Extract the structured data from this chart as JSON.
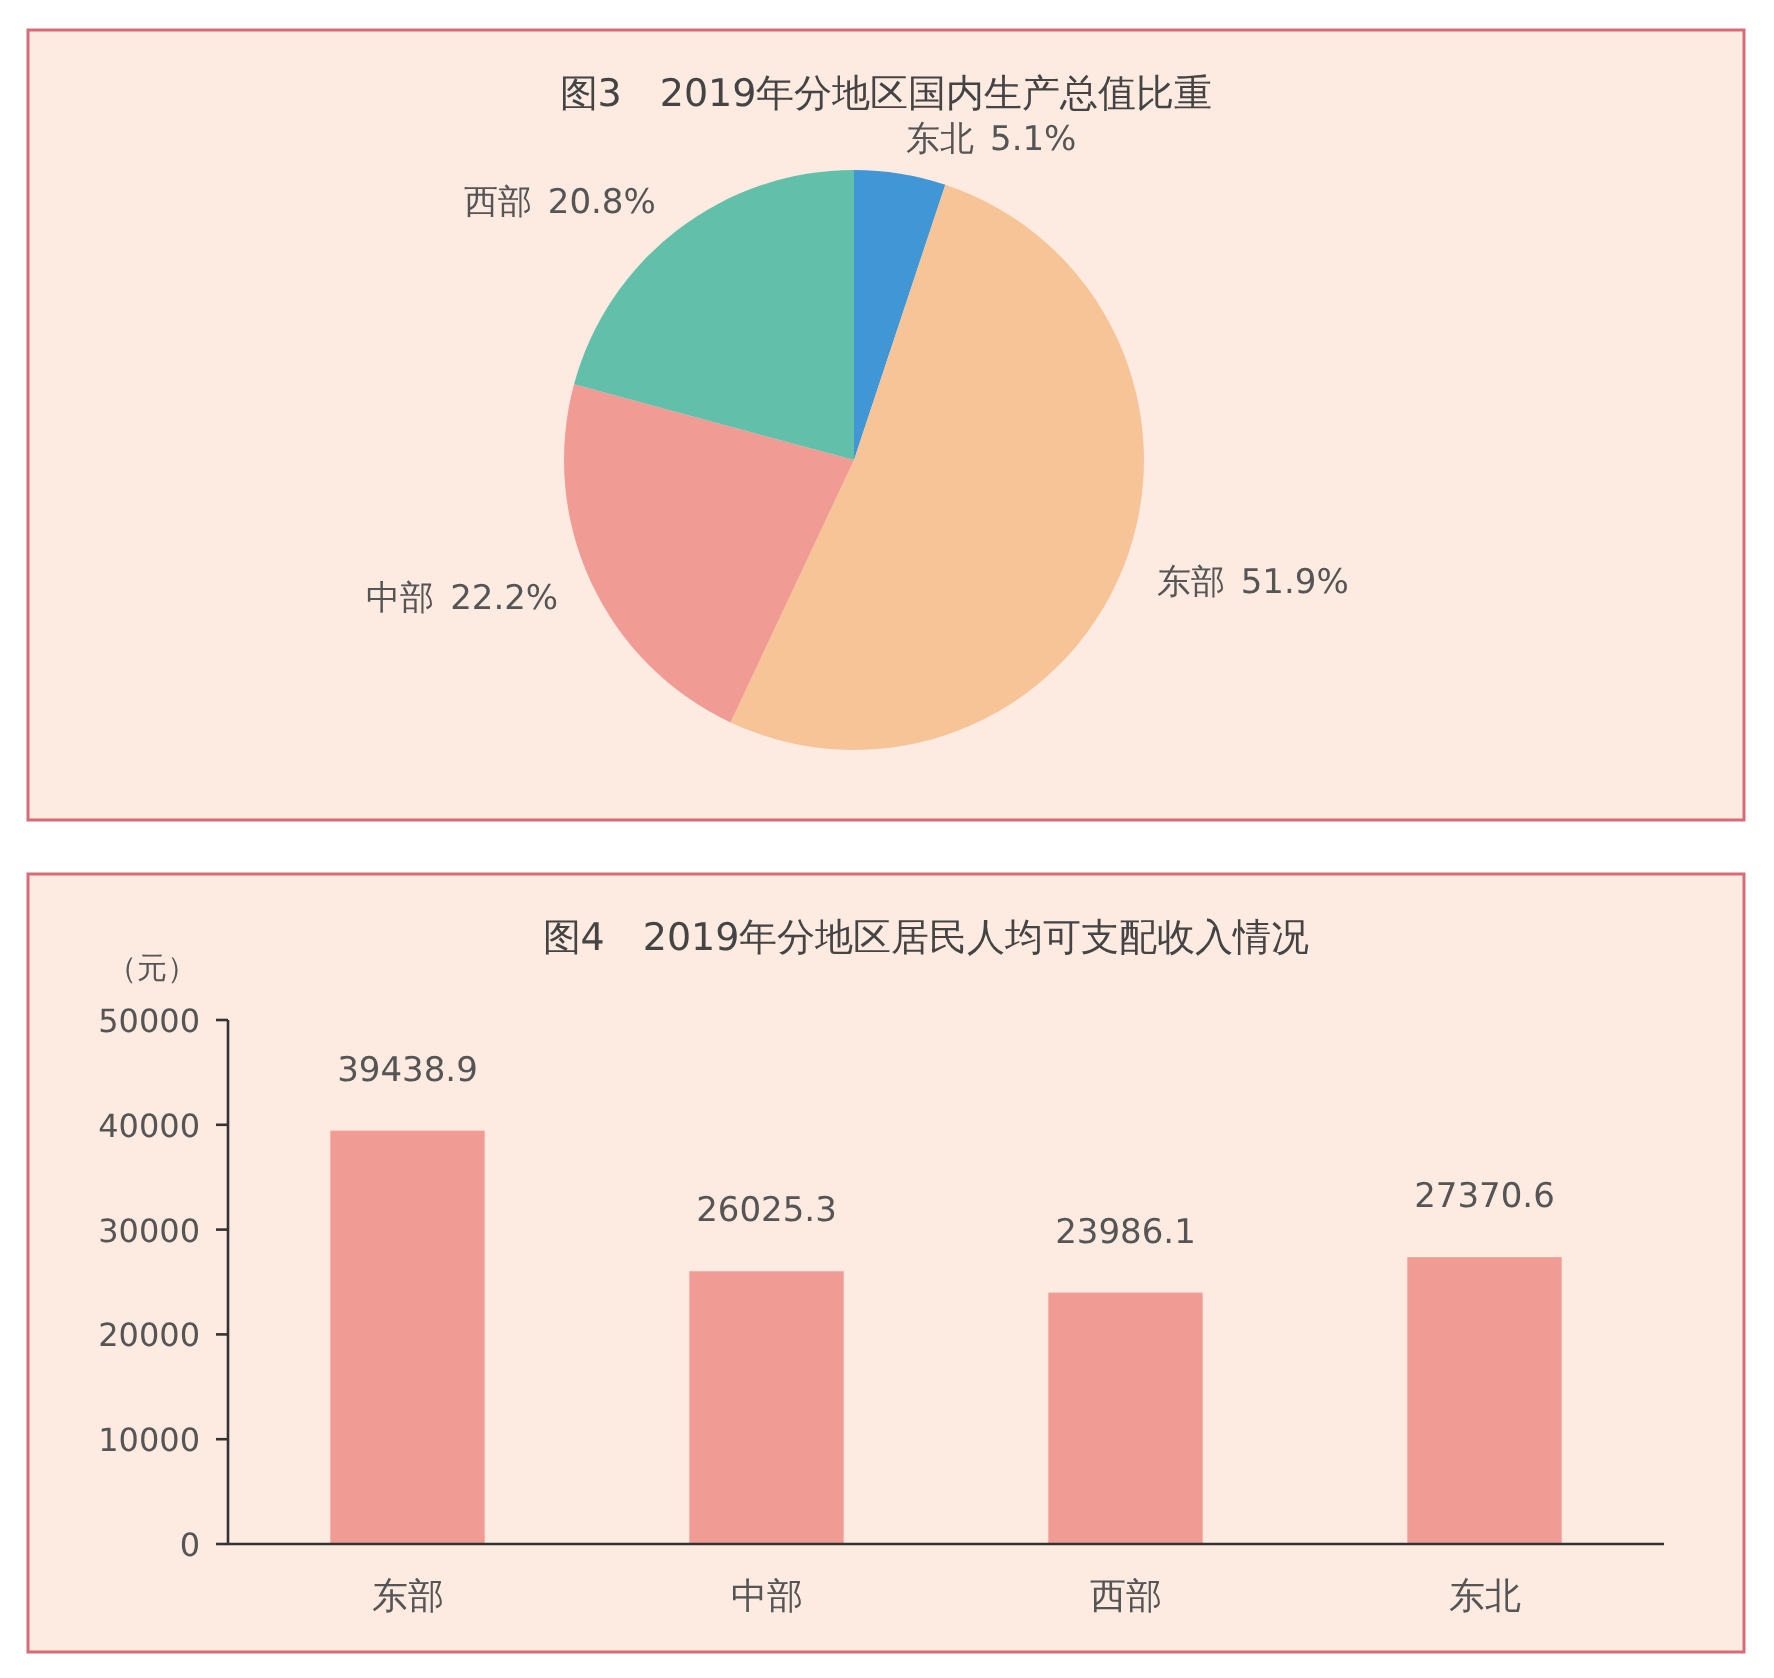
{
  "chart_data": [
    {
      "type": "pie",
      "title": "图3　2019年分地区国内生产总值比重",
      "categories": [
        "东北",
        "东部",
        "中部",
        "西部"
      ],
      "values": [
        5.1,
        51.9,
        22.2,
        20.8
      ],
      "value_labels": [
        "5.1%",
        "51.9%",
        "22.2%",
        "20.8%"
      ],
      "colors": [
        "#4196d6",
        "#f7c498",
        "#f09b94",
        "#62bfaa"
      ]
    },
    {
      "type": "bar",
      "title": "图4　2019年分地区居民人均可支配收入情况",
      "ylabel": "（元）",
      "categories": [
        "东部",
        "中部",
        "西部",
        "东北"
      ],
      "values": [
        39438.9,
        26025.3,
        23986.1,
        27370.6
      ],
      "color": "#f09b94",
      "ylim": [
        0,
        50000
      ],
      "yticks": [
        0,
        10000,
        20000,
        30000,
        40000,
        50000
      ],
      "data_labels": true
    }
  ]
}
